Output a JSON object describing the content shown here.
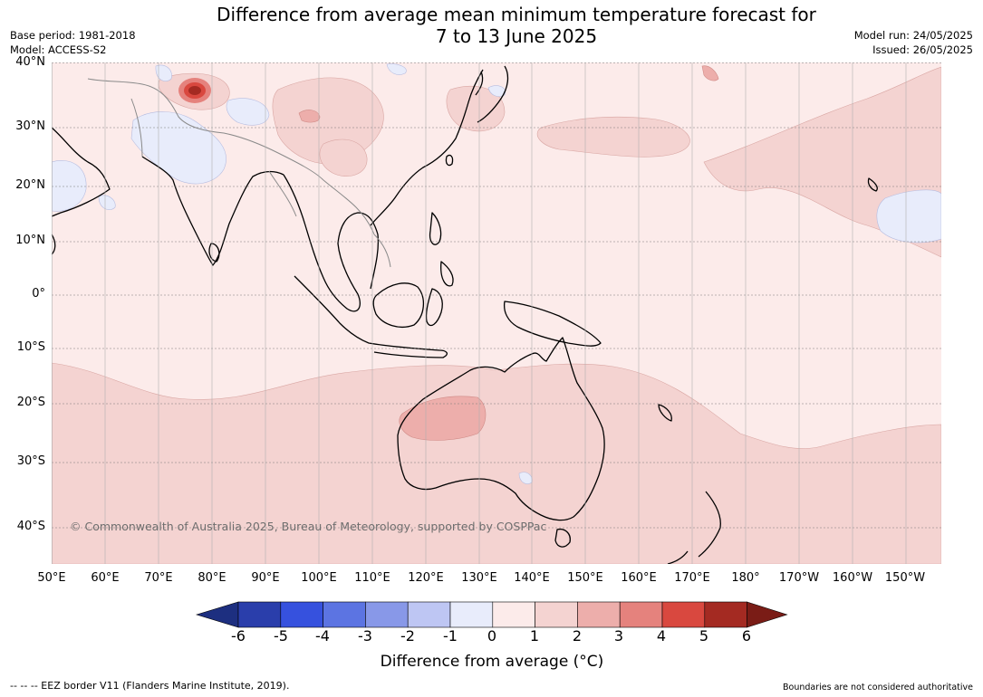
{
  "header": {
    "title_line1": "Difference from average mean minimum temperature forecast for",
    "title_line2": "7 to 13 June 2025",
    "base_period": "Base period: 1981-2018",
    "model": "Model: ACCESS-S2",
    "model_run": "Model run: 24/05/2025",
    "issued": "Issued: 26/05/2025"
  },
  "map": {
    "lat_labels": [
      "40°N",
      "30°N",
      "20°N",
      "10°N",
      "0°",
      "10°S",
      "20°S",
      "30°S",
      "40°S"
    ],
    "lon_labels": [
      "50°E",
      "60°E",
      "70°E",
      "80°E",
      "90°E",
      "100°E",
      "110°E",
      "120°E",
      "130°E",
      "140°E",
      "150°E",
      "160°E",
      "170°E",
      "180°",
      "170°W",
      "160°W",
      "150°W"
    ],
    "copyright": "© Commonwealth of Australia 2025, Bureau of Meteorology, supported by COSPPac"
  },
  "colorbar": {
    "tick_labels": [
      "-6",
      "-5",
      "-4",
      "-3",
      "-2",
      "-1",
      "0",
      "1",
      "2",
      "3",
      "4",
      "5",
      "6"
    ],
    "colors": [
      "#1d2f80",
      "#2a3eab",
      "#3651de",
      "#5c74e2",
      "#8898e8",
      "#bec6f3",
      "#e8ecfb",
      "#fcebea",
      "#f4d3d1",
      "#edaeab",
      "#e5827d",
      "#d9483f",
      "#a42a22",
      "#7a1c16"
    ],
    "title": "Difference from average (°C)"
  },
  "footer": {
    "eez_note": "--  --  -- EEZ border V11 (Flanders Marine Institute, 2019).",
    "boundaries_note": "Boundaries are not considered authoritative"
  }
}
